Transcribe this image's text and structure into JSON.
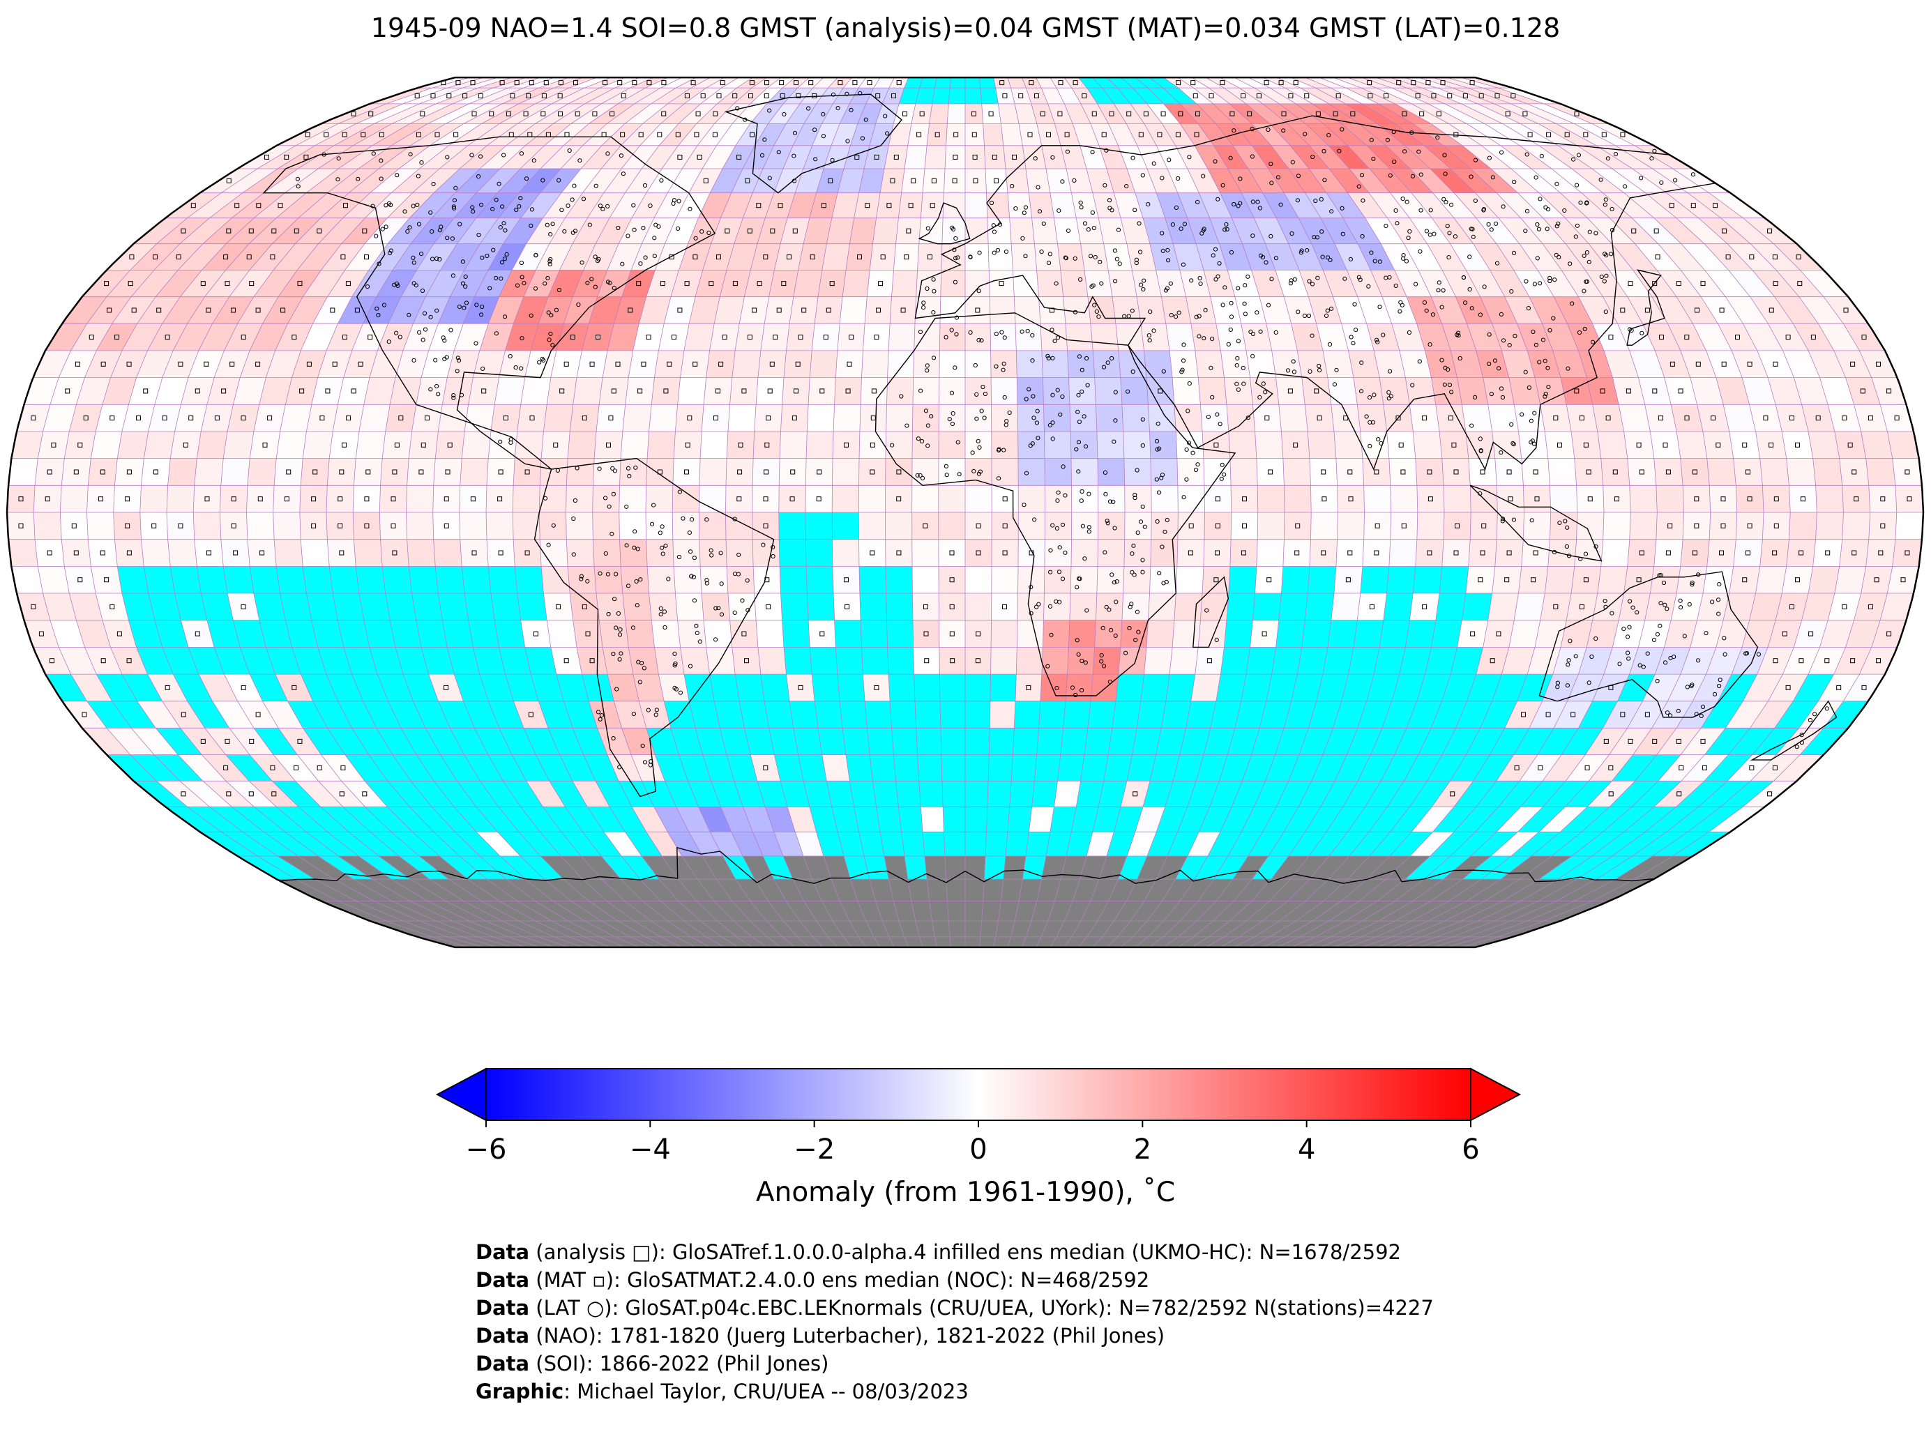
{
  "title": "1945-09 NAO=1.4 SOI=0.8 GMST (analysis)=0.04 GMST (MAT)=0.034 GMST (LAT)=0.128",
  "map": {
    "projection": "Robinson",
    "grid_resolution_deg": 5,
    "colors": {
      "no_data_ocean": "#00ffff",
      "antarctica": "#808080",
      "grid_lines": "#b77cc4",
      "coastline": "#000000",
      "station_marker_edge": "#000000"
    },
    "anomaly_regions": [
      {
        "name": "north-america-west",
        "lon": [
          -125,
          -95
        ],
        "lat": [
          35,
          70
        ],
        "value": -2.0
      },
      {
        "name": "eastern-usa",
        "lon": [
          -95,
          -65
        ],
        "lat": [
          28,
          45
        ],
        "value": 2.5
      },
      {
        "name": "north-atlantic",
        "lon": [
          -60,
          -20
        ],
        "lat": [
          40,
          60
        ],
        "value": 1.2
      },
      {
        "name": "greenland",
        "lon": [
          -60,
          -20
        ],
        "lat": [
          60,
          85
        ],
        "value": -1.2
      },
      {
        "name": "arctic-canada",
        "lon": [
          -140,
          -80
        ],
        "lat": [
          65,
          85
        ],
        "value": 0.6
      },
      {
        "name": "alaska",
        "lon": [
          -170,
          -140
        ],
        "lat": [
          55,
          75
        ],
        "value": 1.0
      },
      {
        "name": "north-pacific",
        "lon": [
          -180,
          -130
        ],
        "lat": [
          30,
          55
        ],
        "value": 1.2
      },
      {
        "name": "siberia-north",
        "lon": [
          60,
          130
        ],
        "lat": [
          60,
          80
        ],
        "value": 2.8
      },
      {
        "name": "russia-central",
        "lon": [
          40,
          90
        ],
        "lat": [
          45,
          60
        ],
        "value": -1.5
      },
      {
        "name": "china",
        "lon": [
          90,
          125
        ],
        "lat": [
          20,
          40
        ],
        "value": 1.8
      },
      {
        "name": "sahara-east",
        "lon": [
          10,
          40
        ],
        "lat": [
          5,
          30
        ],
        "value": -1.2
      },
      {
        "name": "southern-africa",
        "lon": [
          15,
          35
        ],
        "lat": [
          -35,
          -20
        ],
        "value": 2.5
      },
      {
        "name": "australia-south",
        "lon": [
          115,
          155
        ],
        "lat": [
          -40,
          -25
        ],
        "value": -0.8
      },
      {
        "name": "south-america-west",
        "lon": [
          -75,
          -60
        ],
        "lat": [
          -45,
          -5
        ],
        "value": 1.2
      },
      {
        "name": "antarctic-peninsula",
        "lon": [
          -70,
          -40
        ],
        "lat": [
          -70,
          -55
        ],
        "value": -2.0
      }
    ]
  },
  "colorbar": {
    "min": -6,
    "max": 6,
    "ticks": [
      "−6",
      "−4",
      "−2",
      "0",
      "2",
      "4",
      "6"
    ],
    "tick_values": [
      -6,
      -4,
      -2,
      0,
      2,
      4,
      6
    ],
    "colormap": "bwr",
    "extend": "both",
    "colors": {
      "low": "#0000ff",
      "mid": "#ffffff",
      "high": "#ff0000"
    },
    "label": "Anomaly (from 1961-1990), ˚C"
  },
  "credits": [
    {
      "bold": "Data",
      "text": " (analysis □): GloSATref.1.0.0.0-alpha.4 infilled ens median (UKMO-HC): N=1678/2592"
    },
    {
      "bold": "Data",
      "text": " (MAT ▫): GloSATMAT.2.4.0.0 ens median (NOC): N=468/2592"
    },
    {
      "bold": "Data",
      "text": " (LAT ○): GloSAT.p04c.EBC.LEKnormals (CRU/UEA, UYork): N=782/2592 N(stations)=4227"
    },
    {
      "bold": "Data",
      "text": " (NAO): 1781-1820 (Juerg Luterbacher), 1821-2022 (Phil Jones)"
    },
    {
      "bold": "Data",
      "text": " (SOI): 1866-2022 (Phil Jones)"
    },
    {
      "bold": "Graphic",
      "text": ": Michael Taylor, CRU/UEA -- 08/03/2023"
    }
  ]
}
